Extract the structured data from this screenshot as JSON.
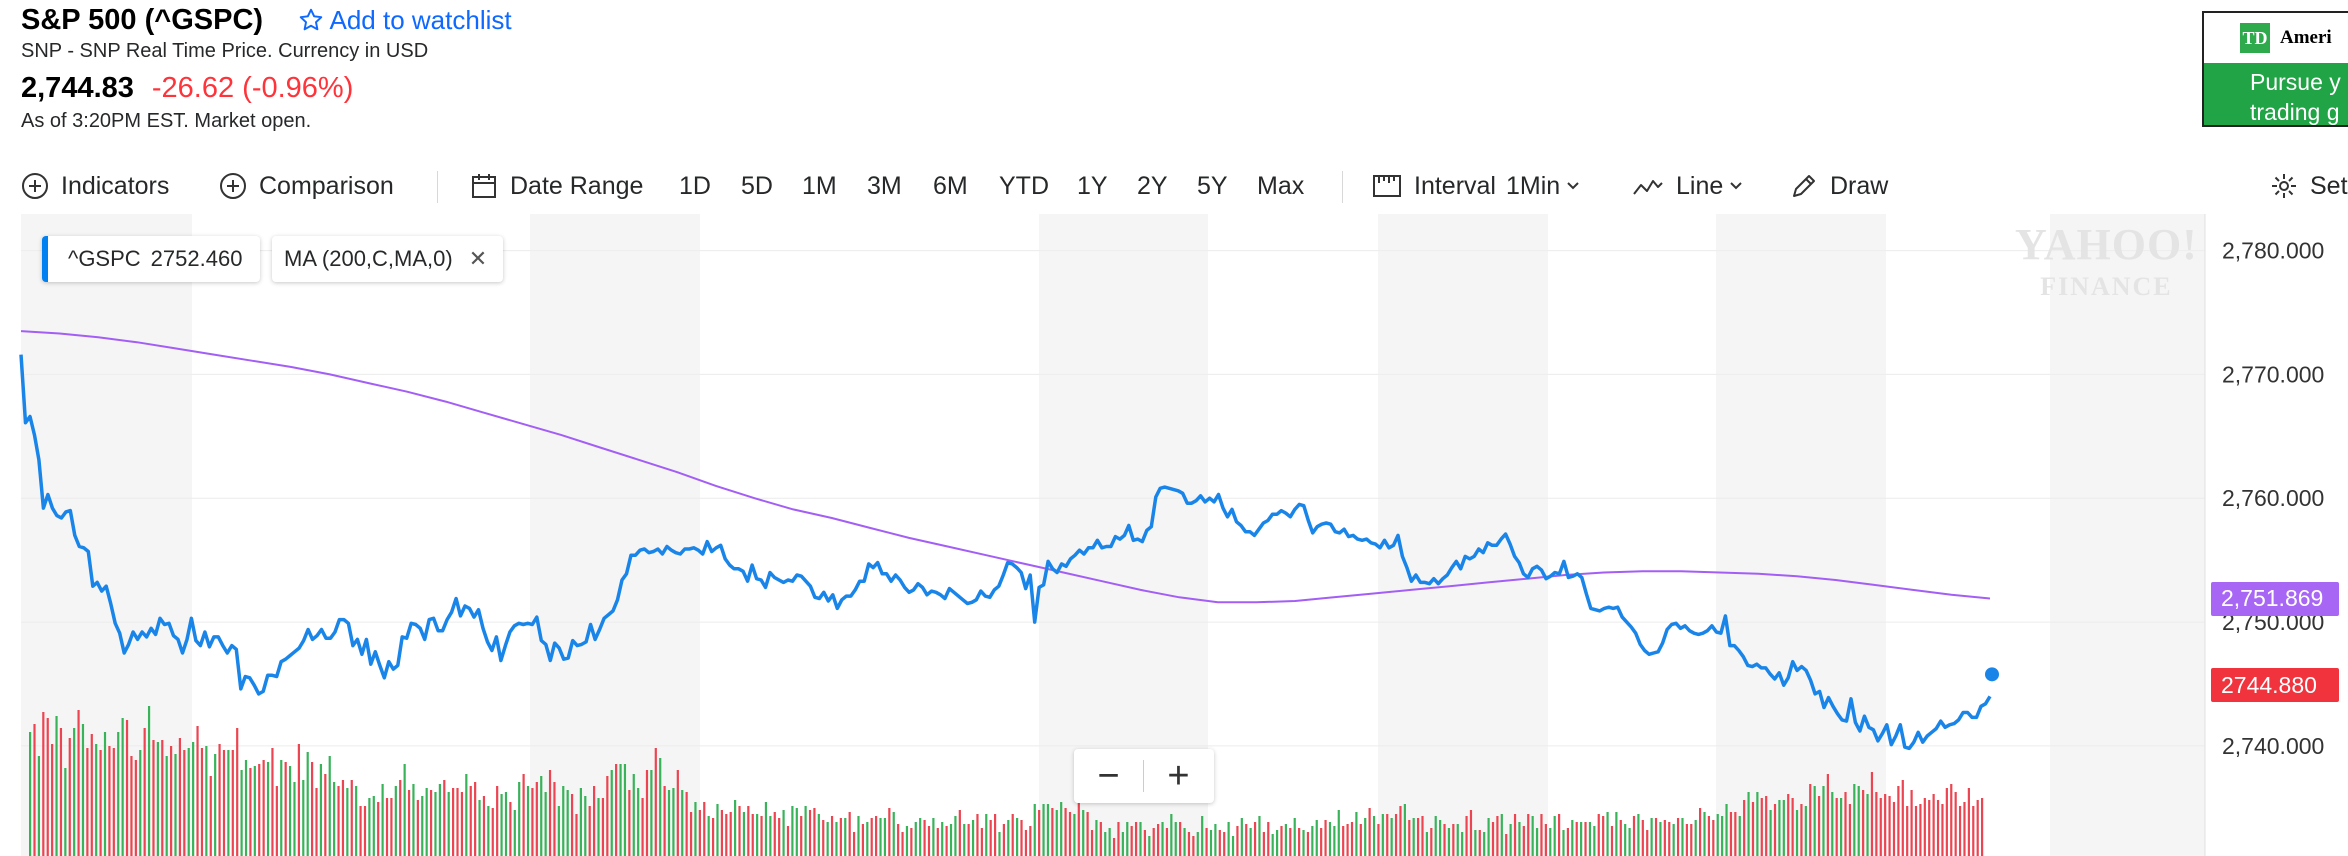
{
  "header": {
    "title": "S&P 500 (^GSPC)",
    "watchlist_label": "Add to watchlist",
    "subtitle": "SNP - SNP Real Time Price. Currency in USD",
    "price": "2,744.83",
    "change": "-26.62 (-0.96%)",
    "as_of": "As of 3:20PM EST. Market open."
  },
  "ad": {
    "brand": "Ameri",
    "logo_text": "TD",
    "line1": "Pursue y",
    "line2": "trading g"
  },
  "toolbar": {
    "indicators": "Indicators",
    "comparison": "Comparison",
    "date_range": "Date Range",
    "ranges": [
      "1D",
      "5D",
      "1M",
      "3M",
      "6M",
      "YTD",
      "1Y",
      "2Y",
      "5Y",
      "Max"
    ],
    "interval_label": "Interval",
    "interval_value": "1Min",
    "chart_type": "Line",
    "draw": "Draw",
    "settings": "Set"
  },
  "legend": {
    "symbol": "^GSPC",
    "symbol_value": "2752.460",
    "ma_label": "MA (200,C,MA,0)"
  },
  "watermark": {
    "line1": "YAHOO!",
    "line2": "FINANCE"
  },
  "labels": {
    "ma_current": "2,751.869",
    "price_current": "2744.880"
  },
  "colors": {
    "price_line": "#1a85e8",
    "ma_line": "#a35ef5",
    "ma_label_bg": "#a866f5",
    "price_label_bg": "#f0333c",
    "vol_up": "#38b35a",
    "vol_down": "#ec4450",
    "accent": "#0f69ff",
    "negative": "#ff333a"
  },
  "chart_data": {
    "type": "line",
    "ylim": [
      2734.5,
      2781.5
    ],
    "yticks": [
      "2,780.000",
      "2,770.000",
      "2,760.000",
      "2,750.000",
      "2,740.000"
    ],
    "ytick_values": [
      2780,
      2770,
      2760,
      2750,
      2740
    ],
    "series": [
      {
        "name": "^GSPC",
        "values": [
          2771.6,
          2766.1,
          2766.6,
          2765.1,
          2763.1,
          2759.2,
          2760.3,
          2759.2,
          2758.6,
          2758.4,
          2758.9,
          2759.0,
          2757.0,
          2756.1,
          2756.0,
          2755.7,
          2752.9,
          2753.2,
          2752.5,
          2752.9,
          2751.5,
          2749.9,
          2749.1,
          2747.5,
          2748.2,
          2749.2,
          2748.6,
          2749.2,
          2748.8,
          2749.5,
          2749.0,
          2750.3,
          2749.8,
          2749.9,
          2748.9,
          2748.6,
          2747.5,
          2748.6,
          2750.3,
          2748.5,
          2748.1,
          2749.2,
          2748.0,
          2748.8,
          2748.8,
          2748.1,
          2747.5,
          2748.1,
          2747.8,
          2744.6,
          2745.6,
          2745.5,
          2744.9,
          2744.2,
          2744.4,
          2745.7,
          2745.7,
          2745.6,
          2746.8,
          2747.0,
          2747.3,
          2747.6,
          2747.9,
          2748.5,
          2749.4,
          2748.6,
          2748.9,
          2749.4,
          2748.7,
          2748.7,
          2749.2,
          2750.2,
          2750.2,
          2749.9,
          2748.1,
          2748.6,
          2747.4,
          2748.6,
          2746.6,
          2747.6,
          2746.5,
          2745.5,
          2746.8,
          2746.2,
          2746.5,
          2748.8,
          2748.7,
          2749.9,
          2749.8,
          2749.5,
          2748.6,
          2750.2,
          2750.3,
          2749.3,
          2749.3,
          2750.2,
          2750.8,
          2751.9,
          2750.5,
          2751.3,
          2751.1,
          2750.4,
          2751.0,
          2749.5,
          2748.4,
          2747.7,
          2748.8,
          2746.9,
          2748.1,
          2749.2,
          2749.7,
          2749.9,
          2749.8,
          2749.9,
          2749.8,
          2750.4,
          2748.5,
          2748.2,
          2746.9,
          2748.3,
          2747.9,
          2747.0,
          2747.1,
          2748.5,
          2748.1,
          2748.2,
          2748.4,
          2749.8,
          2748.6,
          2749.4,
          2750.3,
          2750.6,
          2750.9,
          2751.8,
          2753.4,
          2753.9,
          2755.4,
          2755.4,
          2755.8,
          2755.9,
          2755.6,
          2755.7,
          2755.9,
          2755.5,
          2756.1,
          2755.8,
          2755.6,
          2755.5,
          2755.9,
          2755.9,
          2756.0,
          2755.8,
          2755.5,
          2756.5,
          2755.7,
          2756.0,
          2756.2,
          2755.1,
          2754.6,
          2754.3,
          2754.3,
          2754.1,
          2753.3,
          2754.6,
          2753.5,
          2753.4,
          2752.8,
          2754.0,
          2753.6,
          2753.4,
          2753.2,
          2753.4,
          2753.3,
          2753.8,
          2753.7,
          2753.3,
          2752.9,
          2752.0,
          2751.9,
          2752.4,
          2751.7,
          2752.2,
          2751.1,
          2751.8,
          2752.1,
          2752.1,
          2752.6,
          2753.3,
          2753.3,
          2754.7,
          2754.4,
          2754.8,
          2753.9,
          2753.9,
          2753.3,
          2753.8,
          2753.4,
          2752.8,
          2752.4,
          2752.6,
          2753.1,
          2752.8,
          2752.2,
          2752.5,
          2752.4,
          2752.2,
          2751.9,
          2752.7,
          2752.4,
          2752.1,
          2751.8,
          2751.5,
          2751.6,
          2751.8,
          2752.5,
          2752.1,
          2752.0,
          2752.6,
          2752.9,
          2753.8,
          2754.8,
          2754.7,
          2754.4,
          2754.0,
          2752.7,
          2753.8,
          2750.0,
          2752.8,
          2753.0,
          2754.9,
          2754.3,
          2754.0,
          2754.7,
          2754.5,
          2755.1,
          2755.4,
          2755.8,
          2755.5,
          2756.0,
          2756.0,
          2756.6,
          2756.0,
          2756.1,
          2756.1,
          2756.9,
          2756.7,
          2757.0,
          2757.8,
          2756.6,
          2756.7,
          2756.5,
          2757.4,
          2757.7,
          2760.1,
          2760.8,
          2760.9,
          2760.8,
          2760.7,
          2760.6,
          2760.4,
          2759.6,
          2759.6,
          2759.8,
          2760.2,
          2759.7,
          2760.0,
          2759.7,
          2760.3,
          2759.2,
          2758.5,
          2759.1,
          2758.1,
          2757.8,
          2757.3,
          2757.3,
          2757.0,
          2757.5,
          2758.0,
          2758.2,
          2758.7,
          2758.7,
          2759.0,
          2758.8,
          2758.5,
          2759.1,
          2759.5,
          2759.4,
          2758.2,
          2757.2,
          2757.7,
          2757.9,
          2758.0,
          2757.9,
          2757.3,
          2757.2,
          2757.5,
          2756.9,
          2757.0,
          2756.7,
          2756.6,
          2756.7,
          2756.4,
          2756.3,
          2756.0,
          2756.6,
          2756.0,
          2756.2,
          2757.0,
          2755.3,
          2754.4,
          2753.3,
          2753.8,
          2753.2,
          2753.2,
          2753.1,
          2753.5,
          2753.1,
          2753.5,
          2753.8,
          2754.4,
          2754.9,
          2754.3,
          2755.3,
          2755.1,
          2755.3,
          2755.9,
          2755.6,
          2756.4,
          2756.2,
          2756.2,
          2756.7,
          2757.1,
          2756.3,
          2755.3,
          2754.8,
          2753.9,
          2753.6,
          2754.3,
          2754.5,
          2754.2,
          2753.5,
          2753.7,
          2754.0,
          2753.9,
          2754.9,
          2753.6,
          2753.7,
          2753.9,
          2753.6,
          2752.3,
          2751.1,
          2751.0,
          2750.9,
          2751.1,
          2751.2,
          2751.1,
          2751.2,
          2750.4,
          2750.0,
          2749.6,
          2749.1,
          2748.2,
          2747.7,
          2747.4,
          2747.5,
          2747.6,
          2748.3,
          2749.4,
          2749.8,
          2749.9,
          2749.5,
          2749.7,
          2749.3,
          2749.1,
          2749.0,
          2749.1,
          2749.3,
          2749.7,
          2749.2,
          2749.1,
          2750.5,
          2748.1,
          2748.1,
          2747.7,
          2747.2,
          2746.5,
          2746.4,
          2746.6,
          2746.3,
          2746.3,
          2745.8,
          2745.4,
          2745.9,
          2744.9,
          2745.5,
          2746.8,
          2746.1,
          2746.4,
          2746.1,
          2745.3,
          2744.2,
          2744.4,
          2743.1,
          2743.9,
          2743.2,
          2742.6,
          2742.1,
          2742.0,
          2743.8,
          2741.9,
          2741.2,
          2742.4,
          2741.5,
          2741.3,
          2740.4,
          2741.0,
          2741.7,
          2740.1,
          2740.8,
          2741.7,
          2739.9,
          2739.8,
          2740.3,
          2741.1,
          2740.3,
          2740.8,
          2741.1,
          2741.4,
          2742.0,
          2741.5,
          2741.7,
          2741.8,
          2742.1,
          2742.7,
          2742.7,
          2742.3,
          2742.3,
          2743.2,
          2743.4,
          2744.0
        ]
      },
      {
        "name": "MA (200,C,MA,0)",
        "values": [
          2773.5,
          2773.3,
          2773.0,
          2772.6,
          2772.1,
          2771.6,
          2771.1,
          2770.6,
          2770.0,
          2769.3,
          2768.6,
          2767.8,
          2766.9,
          2766.0,
          2765.1,
          2764.1,
          2763.1,
          2762.1,
          2761.0,
          2760.0,
          2759.1,
          2758.4,
          2757.6,
          2756.8,
          2756.1,
          2755.4,
          2754.7,
          2754.0,
          2753.3,
          2752.6,
          2752.0,
          2751.6,
          2751.6,
          2751.7,
          2752.0,
          2752.3,
          2752.6,
          2752.9,
          2753.2,
          2753.5,
          2753.8,
          2754.0,
          2754.1,
          2754.1,
          2754.0,
          2753.9,
          2753.7,
          2753.4,
          2753.0,
          2752.6,
          2752.2,
          2751.9
        ]
      }
    ],
    "volume": [
      62,
      66,
      50,
      72,
      69,
      56,
      70,
      64,
      44,
      59,
      64,
      73,
      66,
      54,
      61,
      56,
      53,
      62,
      55,
      54,
      62,
      69,
      68,
      50,
      48,
      53,
      64,
      75,
      58,
      57,
      58,
      50,
      55,
      51,
      59,
      53,
      54,
      57,
      65,
      54,
      55,
      40,
      51,
      56,
      53,
      53,
      53,
      64,
      43,
      48,
      44,
      45,
      46,
      48,
      47,
      54,
      35,
      48,
      47,
      45,
      37,
      56,
      38,
      52,
      47,
      34,
      46,
      41,
      50,
      37,
      35,
      38,
      34,
      38,
      35,
      25,
      25,
      29,
      30,
      27,
      36,
      29,
      29,
      35,
      38,
      46,
      33,
      36,
      28,
      30,
      34,
      33,
      32,
      36,
      38,
      32,
      34,
      34,
      32,
      41,
      35,
      37,
      28,
      30,
      25,
      24,
      35,
      31,
      32,
      27,
      23,
      37,
      41,
      35,
      34,
      37,
      40,
      32,
      43,
      37,
      25,
      35,
      33,
      31,
      21,
      34,
      30,
      25,
      35,
      29,
      29,
      40,
      43,
      46,
      46,
      46,
      33,
      41,
      34,
      29,
      43,
      43,
      54,
      49,
      35,
      33,
      34,
      43,
      33,
      32,
      22,
      27,
      23,
      27,
      20,
      19,
      26,
      23,
      21,
      22,
      28,
      25,
      22,
      25,
      21,
      21,
      20,
      27,
      20,
      22,
      19,
      23,
      15,
      25,
      24,
      20,
      25,
      23,
      24,
      21,
      18,
      17,
      20,
      17,
      19,
      19,
      22,
      12,
      20,
      16,
      17,
      19,
      20,
      19,
      19,
      24,
      22,
      16,
      12,
      15,
      14,
      17,
      19,
      18,
      15,
      19,
      14,
      17,
      15,
      16,
      20,
      23,
      16,
      16,
      18,
      21,
      14,
      21,
      18,
      21,
      12,
      16,
      18,
      21,
      19,
      18,
      13,
      15,
      26,
      23,
      26,
      26,
      24,
      23,
      27,
      24,
      22,
      21,
      29,
      23,
      22,
      13,
      18,
      17,
      12,
      14,
      9,
      17,
      12,
      17,
      15,
      17,
      17,
      13,
      10,
      14,
      16,
      17,
      14,
      21,
      17,
      17,
      14,
      12,
      10,
      12,
      20,
      14,
      13,
      16,
      13,
      12,
      17,
      10,
      15,
      19,
      16,
      14,
      17,
      20,
      12,
      17,
      11,
      13,
      15,
      16,
      14,
      19,
      14,
      13,
      12,
      15,
      18,
      14,
      18,
      17,
      15,
      23,
      15,
      16,
      17,
      22,
      16,
      19,
      24,
      20,
      16,
      21,
      21,
      19,
      21,
      25,
      26,
      18,
      19,
      19,
      20,
      12,
      14,
      20,
      18,
      16,
      14,
      16,
      16,
      12,
      20,
      23,
      13,
      13,
      12,
      19,
      17,
      20,
      21,
      11,
      16,
      21,
      17,
      15,
      21,
      20,
      14,
      21,
      16,
      14,
      20,
      21,
      13,
      14,
      18,
      17,
      17,
      17,
      17,
      15,
      21,
      20,
      22,
      15,
      22,
      18,
      16,
      14,
      20,
      21,
      18,
      13,
      19,
      19,
      17,
      18,
      17,
      16,
      19,
      19,
      16,
      16,
      18,
      24,
      22,
      20,
      18,
      21,
      20,
      26,
      22,
      22,
      20,
      28,
      32,
      27,
      32,
      29,
      30,
      23,
      26,
      28,
      28,
      31,
      29,
      23,
      26,
      25,
      36,
      35,
      30,
      35,
      41,
      32,
      29,
      29,
      32,
      26,
      36,
      35,
      33,
      31,
      42,
      32,
      29,
      31,
      30,
      27,
      35,
      38,
      25,
      33,
      25,
      26,
      29,
      28,
      31,
      28,
      26,
      34,
      36,
      32,
      25,
      27,
      34,
      25,
      28,
      29
    ],
    "volume_direction": [
      1,
      0,
      1,
      0,
      0,
      0,
      1,
      0,
      1,
      0,
      1,
      0,
      1,
      0,
      0,
      1,
      0,
      1,
      0,
      0,
      1,
      1,
      0,
      0,
      0,
      1,
      0,
      1,
      0,
      1,
      0,
      1,
      0,
      1,
      0,
      0,
      1,
      1,
      0,
      0,
      1,
      0,
      1,
      0,
      0,
      1,
      0,
      0,
      1,
      1,
      0,
      1,
      0,
      0,
      1,
      0,
      0,
      1,
      0,
      1,
      1,
      0,
      1,
      1,
      0,
      0,
      1,
      0,
      1,
      1,
      0,
      0,
      1,
      0,
      1,
      0,
      0,
      1,
      1,
      0,
      1,
      0,
      0,
      1,
      0,
      1,
      0,
      1,
      0,
      1,
      1,
      0,
      1,
      1,
      0,
      1,
      0,
      0,
      0,
      1,
      0,
      0,
      1,
      0,
      1,
      0,
      0,
      1,
      1,
      0,
      1,
      1,
      0,
      1,
      0,
      0,
      1,
      1,
      0,
      0,
      1,
      1,
      1,
      0,
      0,
      1,
      1,
      0,
      0,
      1,
      0,
      0,
      1,
      0,
      1,
      1,
      0,
      1,
      1,
      0,
      0,
      1,
      0,
      1,
      0,
      1,
      1,
      0,
      1,
      0,
      0,
      1,
      0,
      0,
      1,
      0,
      1,
      0,
      0,
      0,
      1,
      0,
      1,
      0,
      0,
      1,
      0,
      1,
      1,
      0,
      0,
      1,
      0,
      1,
      1,
      0,
      1,
      0,
      0,
      1,
      0,
      1,
      0,
      1,
      0,
      1,
      0,
      0,
      1,
      0,
      1,
      0,
      0,
      1,
      1,
      0,
      1,
      0,
      0,
      1,
      0,
      1,
      1,
      0,
      0,
      1,
      0,
      1,
      0,
      1,
      1,
      0,
      1,
      0,
      1,
      0,
      0,
      1,
      0,
      0,
      1,
      0,
      1,
      0,
      1,
      0,
      0,
      0,
      1,
      0,
      1,
      1,
      0,
      1,
      1,
      0,
      0,
      1,
      0,
      1,
      0,
      0,
      1,
      0,
      1,
      1,
      0,
      0,
      1,
      1,
      0,
      0,
      1,
      0,
      1,
      0,
      0,
      1,
      0,
      1,
      1,
      0,
      1,
      0,
      0,
      1,
      1,
      0,
      1,
      1,
      0,
      0,
      1,
      1,
      0,
      1,
      0,
      1,
      0,
      1,
      0,
      0,
      1,
      1,
      0,
      1,
      0,
      1,
      0,
      1,
      0,
      1,
      1,
      0,
      0,
      1,
      1,
      1,
      0,
      0,
      0,
      1,
      0,
      1,
      0,
      1,
      0,
      1,
      0,
      1,
      0,
      0,
      1,
      0,
      1,
      0,
      0,
      1,
      0,
      1,
      1,
      0,
      1,
      0,
      1,
      1,
      0,
      0,
      1,
      0,
      1,
      1,
      0,
      0,
      1,
      0,
      1,
      0,
      1,
      0,
      0,
      1,
      1,
      0,
      0,
      1,
      1,
      0,
      1,
      0,
      1,
      0,
      1,
      0,
      1,
      1,
      0,
      0,
      1,
      0,
      1,
      0,
      1,
      1,
      0,
      1,
      0,
      0,
      1,
      0,
      1,
      0,
      0,
      1,
      0,
      1,
      0,
      0,
      1,
      0,
      1,
      0,
      0,
      1,
      1,
      1,
      0,
      0,
      1,
      0,
      1,
      0,
      1,
      0,
      0,
      1,
      0,
      1,
      1,
      0,
      0,
      1,
      0,
      1,
      0,
      1,
      0,
      1,
      0,
      1,
      0,
      1,
      0,
      0,
      1,
      1,
      0,
      1
    ]
  }
}
